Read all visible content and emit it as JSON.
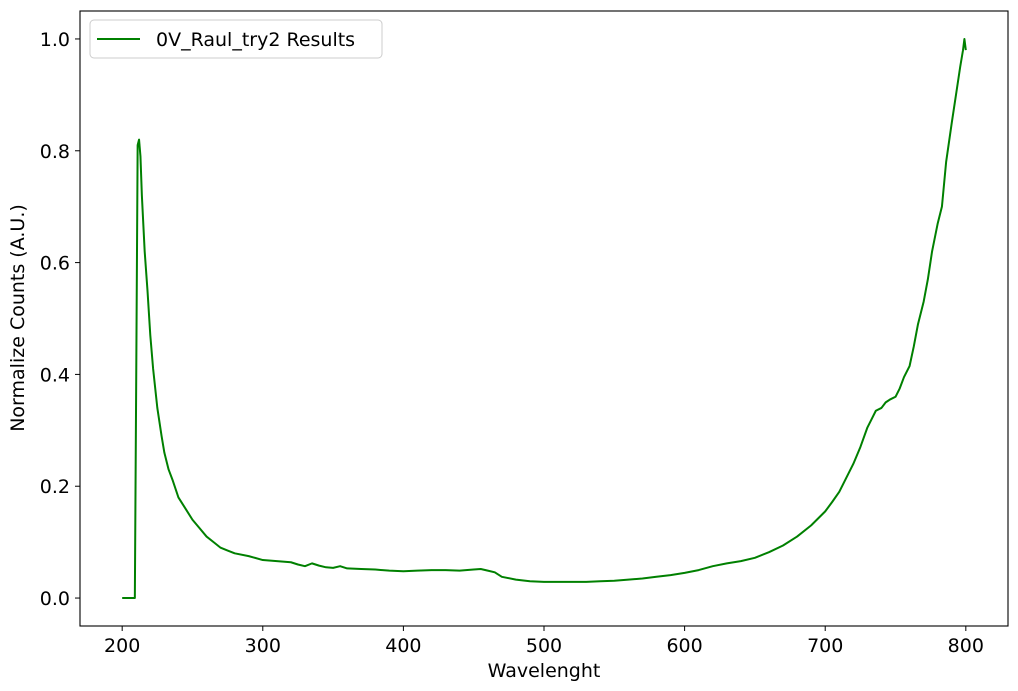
{
  "chart_data": {
    "type": "line",
    "xlabel": "Wavelenght",
    "ylabel": "Normalize Counts (A.U.)",
    "xlim": [
      170,
      830
    ],
    "ylim": [
      -0.05,
      1.05
    ],
    "x_ticks": [
      200,
      300,
      400,
      500,
      600,
      700,
      800
    ],
    "y_ticks": [
      0.0,
      0.2,
      0.4,
      0.6,
      0.8,
      1.0
    ],
    "x_tick_labels": [
      "200",
      "300",
      "400",
      "500",
      "600",
      "700",
      "800"
    ],
    "y_tick_labels": [
      "0.0",
      "0.2",
      "0.4",
      "0.6",
      "0.8",
      "1.0"
    ],
    "grid": false,
    "legend_position": "top-left",
    "series": [
      {
        "name": "0V_Raul_try2 Results",
        "color": "#008000",
        "x": [
          200,
          205,
          209,
          210,
          211,
          212,
          213,
          214,
          216,
          218,
          220,
          222,
          225,
          228,
          230,
          233,
          236,
          240,
          245,
          250,
          255,
          260,
          265,
          270,
          275,
          280,
          290,
          300,
          310,
          320,
          325,
          330,
          335,
          340,
          345,
          350,
          355,
          360,
          370,
          380,
          390,
          400,
          410,
          420,
          430,
          440,
          450,
          455,
          460,
          465,
          470,
          480,
          490,
          500,
          510,
          520,
          530,
          540,
          550,
          560,
          570,
          580,
          590,
          600,
          610,
          620,
          630,
          640,
          650,
          660,
          670,
          680,
          690,
          700,
          705,
          710,
          715,
          720,
          725,
          730,
          733,
          736,
          740,
          743,
          746,
          750,
          753,
          756,
          760,
          763,
          766,
          770,
          773,
          776,
          780,
          783,
          786,
          790,
          793,
          796,
          798,
          799,
          800
        ],
        "y": [
          0.0,
          0.0,
          0.0,
          0.4,
          0.81,
          0.82,
          0.79,
          0.72,
          0.62,
          0.55,
          0.47,
          0.41,
          0.34,
          0.29,
          0.26,
          0.23,
          0.21,
          0.18,
          0.16,
          0.14,
          0.125,
          0.11,
          0.1,
          0.09,
          0.085,
          0.08,
          0.075,
          0.068,
          0.066,
          0.064,
          0.06,
          0.057,
          0.062,
          0.058,
          0.055,
          0.054,
          0.057,
          0.053,
          0.052,
          0.051,
          0.049,
          0.048,
          0.049,
          0.05,
          0.05,
          0.049,
          0.051,
          0.052,
          0.049,
          0.046,
          0.038,
          0.033,
          0.03,
          0.029,
          0.029,
          0.029,
          0.029,
          0.03,
          0.031,
          0.033,
          0.035,
          0.038,
          0.041,
          0.045,
          0.05,
          0.057,
          0.062,
          0.066,
          0.072,
          0.082,
          0.094,
          0.11,
          0.13,
          0.155,
          0.172,
          0.19,
          0.215,
          0.24,
          0.27,
          0.305,
          0.32,
          0.335,
          0.34,
          0.35,
          0.355,
          0.36,
          0.375,
          0.395,
          0.415,
          0.45,
          0.49,
          0.53,
          0.57,
          0.62,
          0.67,
          0.7,
          0.78,
          0.85,
          0.9,
          0.95,
          0.98,
          1.0,
          0.98
        ]
      }
    ]
  }
}
